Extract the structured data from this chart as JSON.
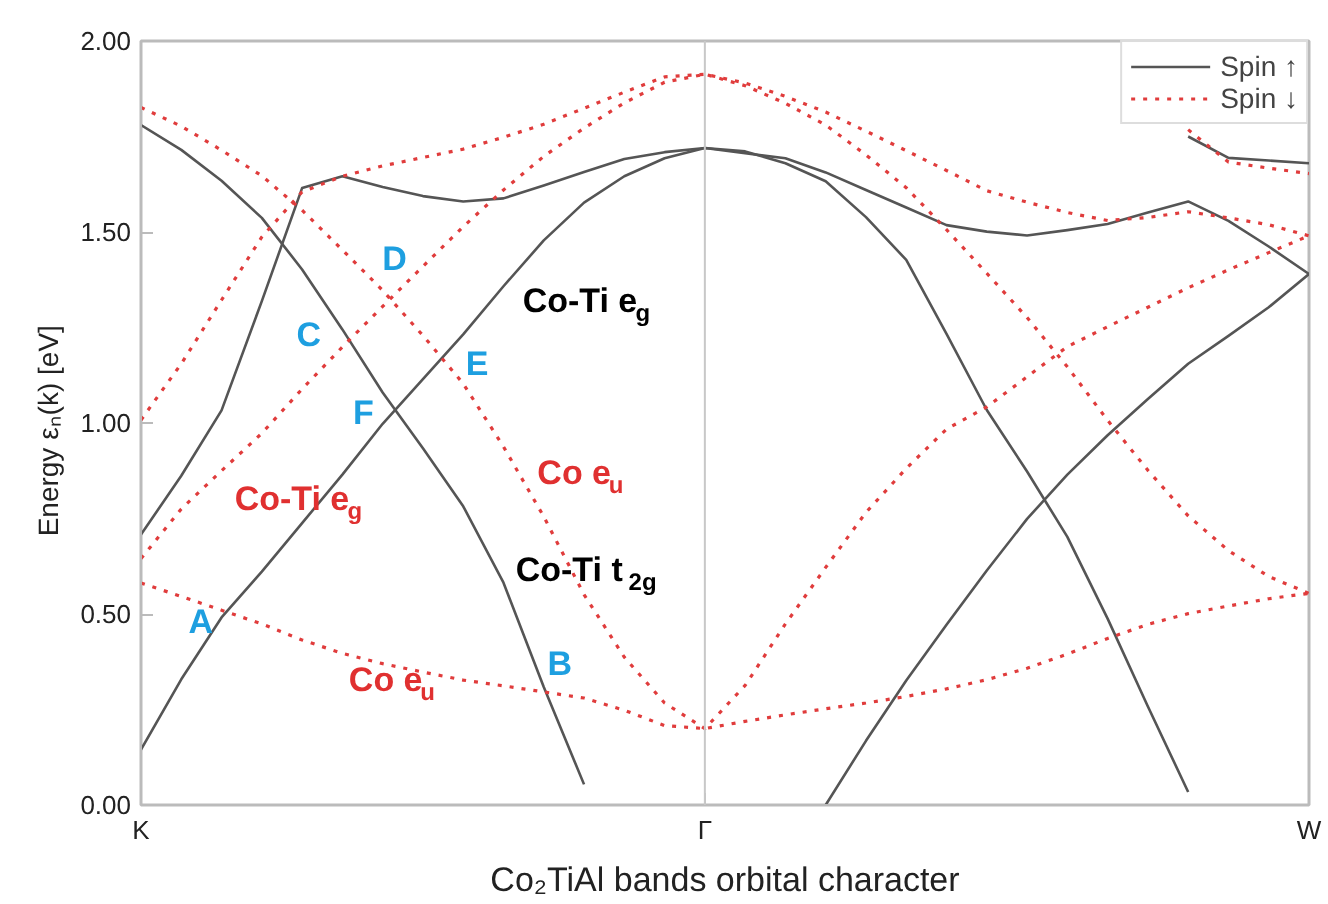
{
  "chart_data": {
    "type": "line",
    "xlabel": "Co₂TiAl bands orbital character",
    "ylabel": "Energy  εₙ(k)  [eV]",
    "categories": [
      "K",
      null,
      null,
      null,
      null,
      null,
      null,
      null,
      null,
      null,
      null,
      null,
      null,
      null,
      "Γ",
      null,
      null,
      null,
      null,
      null,
      null,
      null,
      null,
      null,
      null,
      null,
      null,
      null,
      null,
      "W"
    ],
    "ylim": [
      0,
      2.0
    ],
    "yticks": [
      {
        "value": 0,
        "label": "0.00"
      },
      {
        "value": 0.5,
        "label": "0.50"
      },
      {
        "value": 1.0,
        "label": "1.00"
      },
      {
        "value": 1.5,
        "label": "1.50"
      },
      {
        "value": 2.0,
        "label": "2.00"
      }
    ],
    "grid": false,
    "legend": "top right",
    "marker": "none",
    "ref_lines": [
      {
        "axis": "x",
        "value": "Γ",
        "color": "#c8c8c8"
      }
    ],
    "series": [
      {
        "name": "Spin ↑",
        "color": "#555555",
        "line_style": "solid",
        "values": [
          1.78,
          1.715,
          1.634,
          1.537,
          1.402,
          1.245,
          1.08,
          0.934,
          0.782,
          0.582,
          0.309,
          0.054,
          null,
          null,
          null,
          null,
          null,
          null,
          null,
          null,
          null,
          null,
          null,
          null,
          null,
          null,
          null,
          null,
          null,
          null
        ]
      },
      {
        "color": "#555555",
        "line_style": "solid",
        "values": [
          0.708,
          0.862,
          1.033,
          1.319,
          1.615,
          1.646,
          1.618,
          1.594,
          1.58,
          1.588,
          1.622,
          1.657,
          1.691,
          1.709,
          1.72,
          1.706,
          1.693,
          1.656,
          1.61,
          1.564,
          1.518,
          1.501,
          1.491,
          1.505,
          1.521,
          1.551,
          1.58,
          1.529,
          1.462,
          1.39
        ]
      },
      {
        "color": "#555555",
        "line_style": "solid",
        "values": [
          0.145,
          0.329,
          0.491,
          0.611,
          0.738,
          0.865,
          0.998,
          1.115,
          1.232,
          1.358,
          1.478,
          1.577,
          1.646,
          1.693,
          1.72,
          1.711,
          1.68,
          1.633,
          1.539,
          1.427,
          1.233,
          1.034,
          0.873,
          0.702,
          0.488,
          0.258,
          0.034,
          null,
          null,
          null
        ]
      },
      {
        "color": "#555555",
        "line_style": "solid",
        "values": [
          null,
          null,
          null,
          null,
          null,
          null,
          null,
          null,
          null,
          null,
          null,
          null,
          null,
          null,
          null,
          null,
          null,
          0.0,
          0.168,
          0.326,
          0.472,
          0.614,
          0.749,
          0.865,
          0.968,
          1.063,
          1.155,
          1.228,
          1.303,
          1.39
        ]
      },
      {
        "color": "#555555",
        "line_style": "solid",
        "values": [
          null,
          null,
          null,
          null,
          null,
          null,
          null,
          null,
          null,
          null,
          null,
          null,
          null,
          null,
          null,
          null,
          null,
          null,
          null,
          null,
          null,
          null,
          null,
          null,
          null,
          null,
          1.75,
          1.694,
          1.687,
          1.68
        ]
      },
      {
        "name": "Spin ↓",
        "color": "#e03c3c",
        "line_style": "dotted",
        "values": [
          1.826,
          1.777,
          1.714,
          1.647,
          1.557,
          1.453,
          1.347,
          1.229,
          1.103,
          0.938,
          0.755,
          0.551,
          0.387,
          0.267,
          0.2,
          0.313,
          0.474,
          0.622,
          0.766,
          0.881,
          0.984,
          1.042,
          1.121,
          1.2,
          1.252,
          1.303,
          1.354,
          1.401,
          1.446,
          1.49
        ]
      },
      {
        "color": "#e03c3c",
        "line_style": "dotted",
        "values": [
          0.581,
          0.546,
          0.51,
          0.474,
          0.432,
          0.397,
          0.37,
          0.348,
          0.327,
          0.312,
          0.296,
          0.28,
          0.248,
          0.208,
          0.2,
          0.219,
          0.236,
          0.252,
          0.267,
          0.284,
          0.304,
          0.328,
          0.358,
          0.395,
          0.436,
          0.473,
          0.501,
          0.521,
          0.54,
          0.554
        ]
      },
      {
        "color": "#e03c3c",
        "line_style": "dotted",
        "values": [
          0.645,
          0.775,
          0.875,
          0.973,
          1.089,
          1.199,
          1.305,
          1.41,
          1.514,
          1.61,
          1.698,
          1.772,
          1.838,
          1.892,
          1.913,
          1.883,
          1.837,
          1.78,
          1.702,
          1.616,
          1.506,
          1.392,
          1.276,
          1.147,
          1.007,
          0.876,
          0.757,
          0.666,
          0.598,
          0.554
        ]
      },
      {
        "color": "#e03c3c",
        "line_style": "dotted",
        "values": [
          1.008,
          1.155,
          1.322,
          1.487,
          1.605,
          1.646,
          1.673,
          1.695,
          1.717,
          1.748,
          1.782,
          1.824,
          1.866,
          1.906,
          1.913,
          1.89,
          1.855,
          1.814,
          1.764,
          1.713,
          1.661,
          1.608,
          1.578,
          1.551,
          1.53,
          1.538,
          1.553,
          1.537,
          1.519,
          1.49
        ]
      },
      {
        "color": "#e03c3c",
        "line_style": "dotted",
        "values": [
          null,
          null,
          null,
          null,
          null,
          null,
          null,
          null,
          null,
          null,
          null,
          null,
          null,
          null,
          null,
          null,
          null,
          null,
          null,
          null,
          null,
          null,
          null,
          null,
          null,
          null,
          1.768,
          1.683,
          1.667,
          1.653
        ]
      }
    ],
    "annotations": [
      "A",
      "B",
      "C",
      "D",
      "E",
      "F",
      "Co-Ti e$_{g}$",
      "Co e$_{u}$",
      "Co-Ti e$_{g}$",
      "Co-Ti t$_{2g}$",
      "Co e$_{u}$"
    ]
  }
}
